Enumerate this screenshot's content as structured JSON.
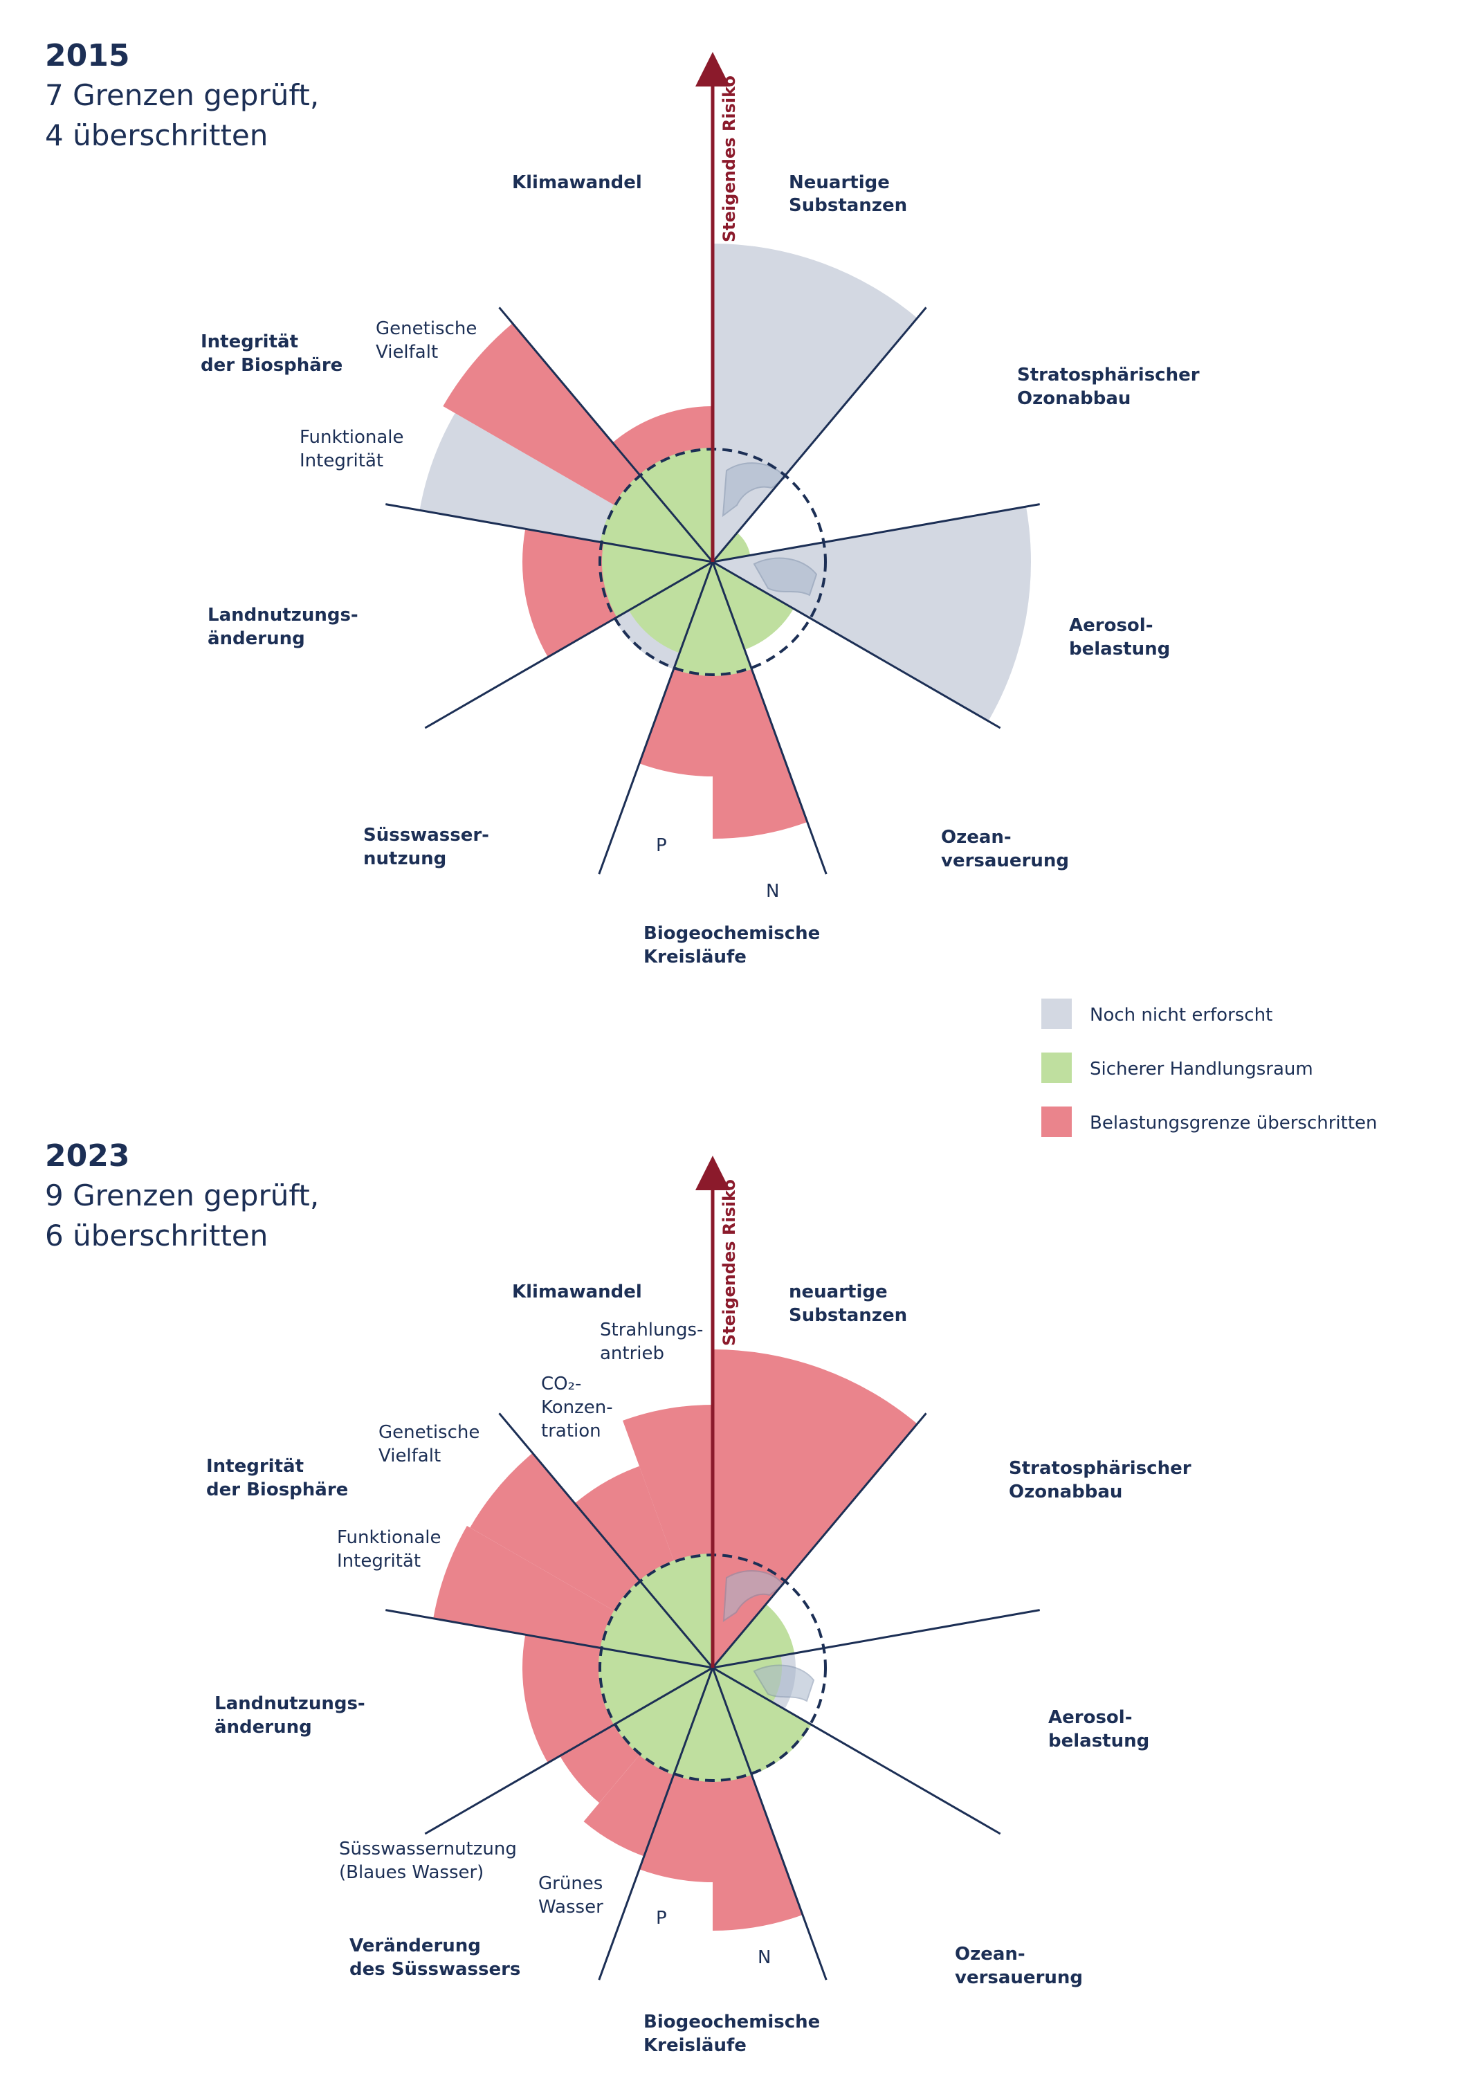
{
  "colors": {
    "not_quantified": "#d3d8e2",
    "safe": "#bfdf9f",
    "exceeded": "#ea848c",
    "navy": "#1c2f55",
    "risk": "#8b1a2b",
    "globe": "#a8b7cc"
  },
  "legend": {
    "items": [
      {
        "label": "Noch nicht erforscht",
        "color": "#d3d8e2"
      },
      {
        "label": "Sicherer Handlungsraum",
        "color": "#bfdf9f"
      },
      {
        "label": "Belastungsgrenze überschritten",
        "color": "#ea848c"
      }
    ]
  },
  "diagrams": [
    {
      "year": "2015",
      "subtitle_line1": "7 Grenzen geprüft,",
      "subtitle_line2": "4 überschritten",
      "risk_label": "Steigendes Risiko",
      "labels": {
        "klima": "Klimawandel",
        "novel_1": "Neuartige",
        "novel_2": "Substanzen",
        "ozon_1": "Stratosphärischer",
        "ozon_2": "Ozonabbau",
        "aerosol_1": "Aerosol-",
        "aerosol_2": "belastung",
        "ozean_1": "Ozean-",
        "ozean_2": "versauerung",
        "bgc_1": "Biogeochemische",
        "bgc_2": "Kreisläufe",
        "n": "N",
        "p": "P",
        "water_1": "Süsswasser-",
        "water_2": "nutzung",
        "land_1": "Landnutzungs-",
        "land_2": "änderung",
        "bio_1": "Integrität",
        "bio_2": "der Biosphäre",
        "gen_1": "Genetische",
        "gen_2": "Vielfalt",
        "func_1": "Funktionale",
        "func_2": "Integrität"
      }
    },
    {
      "year": "2023",
      "subtitle_line1": "9 Grenzen geprüft,",
      "subtitle_line2": "6 überschritten",
      "risk_label": "Steigendes Risiko",
      "labels": {
        "klima": "Klimawandel",
        "strahl_1": "Strahlungs-",
        "strahl_2": "antrieb",
        "co2_1": "CO₂-",
        "co2_2": "Konzen-",
        "co2_3": "tration",
        "novel_1": "neuartige",
        "novel_2": "Substanzen",
        "ozon_1": "Stratosphärischer",
        "ozon_2": "Ozonabbau",
        "aerosol_1": "Aerosol-",
        "aerosol_2": "belastung",
        "ozean_1": "Ozean-",
        "ozean_2": "versauerung",
        "bgc_1": "Biogeochemische",
        "bgc_2": "Kreisläufe",
        "n": "N",
        "p": "P",
        "green_1": "Grünes",
        "green_2": "Wasser",
        "blue_1": "Süsswassernutzung",
        "blue_2": "(Blaues Wasser)",
        "water_1": "Veränderung",
        "water_2": "des Süsswassers",
        "land_1": "Landnutzungs-",
        "land_2": "änderung",
        "bio_1": "Integrität",
        "bio_2": "der Biosphäre",
        "gen_1": "Genetische",
        "gen_2": "Vielfalt",
        "func_1": "Funktionale",
        "func_2": "Integrität"
      }
    }
  ]
}
